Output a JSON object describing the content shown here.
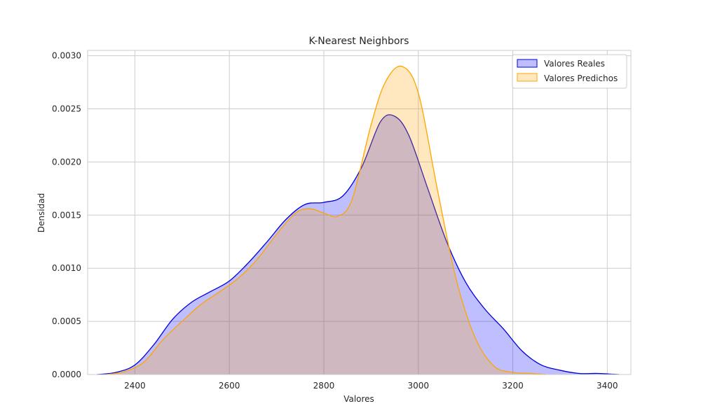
{
  "chart_data": {
    "type": "area",
    "title": "K-Nearest Neighbors",
    "xlabel": "Valores",
    "ylabel": "Densidad",
    "xlim": [
      2300,
      3450
    ],
    "ylim": [
      0,
      0.00305
    ],
    "xticks": [
      2400,
      2600,
      2800,
      3000,
      3200,
      3400
    ],
    "xtick_labels": [
      "2400",
      "2600",
      "2800",
      "3000",
      "3200",
      "3400"
    ],
    "yticks": [
      0,
      0.0005,
      0.001,
      0.0015,
      0.002,
      0.0025,
      0.003
    ],
    "ytick_labels": [
      "0.0000",
      "0.0005",
      "0.0010",
      "0.0015",
      "0.0020",
      "0.0025",
      "0.0030"
    ],
    "grid": true,
    "legend_position": "top-right",
    "series": [
      {
        "name": "Valores Reales",
        "line_color": "#0000dd",
        "fill_color": "#0000ff",
        "fill_opacity": 0.25,
        "x": [
          2320,
          2360,
          2400,
          2440,
          2480,
          2520,
          2560,
          2600,
          2640,
          2680,
          2720,
          2760,
          2800,
          2840,
          2880,
          2920,
          2950,
          2980,
          3020,
          3060,
          3100,
          3140,
          3180,
          3220,
          3260,
          3300,
          3340,
          3380,
          3425
        ],
        "y": [
          0.0,
          2e-05,
          9e-05,
          0.00028,
          0.00052,
          0.00068,
          0.00078,
          0.00088,
          0.00105,
          0.00125,
          0.00146,
          0.0016,
          0.00162,
          0.00168,
          0.00195,
          0.00238,
          0.00243,
          0.00225,
          0.00175,
          0.00125,
          0.00087,
          0.00062,
          0.00043,
          0.00022,
          9e-05,
          4e-05,
          1e-05,
          1e-05,
          0.0
        ]
      },
      {
        "name": "Valores Predichos",
        "line_color": "#ffa500",
        "fill_color": "#ffa500",
        "fill_opacity": 0.25,
        "x": [
          2340,
          2380,
          2420,
          2460,
          2500,
          2540,
          2580,
          2620,
          2660,
          2700,
          2740,
          2770,
          2800,
          2830,
          2860,
          2900,
          2930,
          2965,
          3000,
          3040,
          3080,
          3120,
          3160,
          3200,
          3240,
          3270
        ],
        "y": [
          0.0,
          3e-05,
          0.00012,
          0.00033,
          0.0005,
          0.00066,
          0.00078,
          0.00091,
          0.00109,
          0.00132,
          0.00152,
          0.00156,
          0.00152,
          0.00149,
          0.00165,
          0.00235,
          0.00275,
          0.0029,
          0.00265,
          0.00175,
          0.0009,
          0.00035,
          8e-05,
          2e-05,
          1e-05,
          0.0
        ]
      }
    ]
  }
}
